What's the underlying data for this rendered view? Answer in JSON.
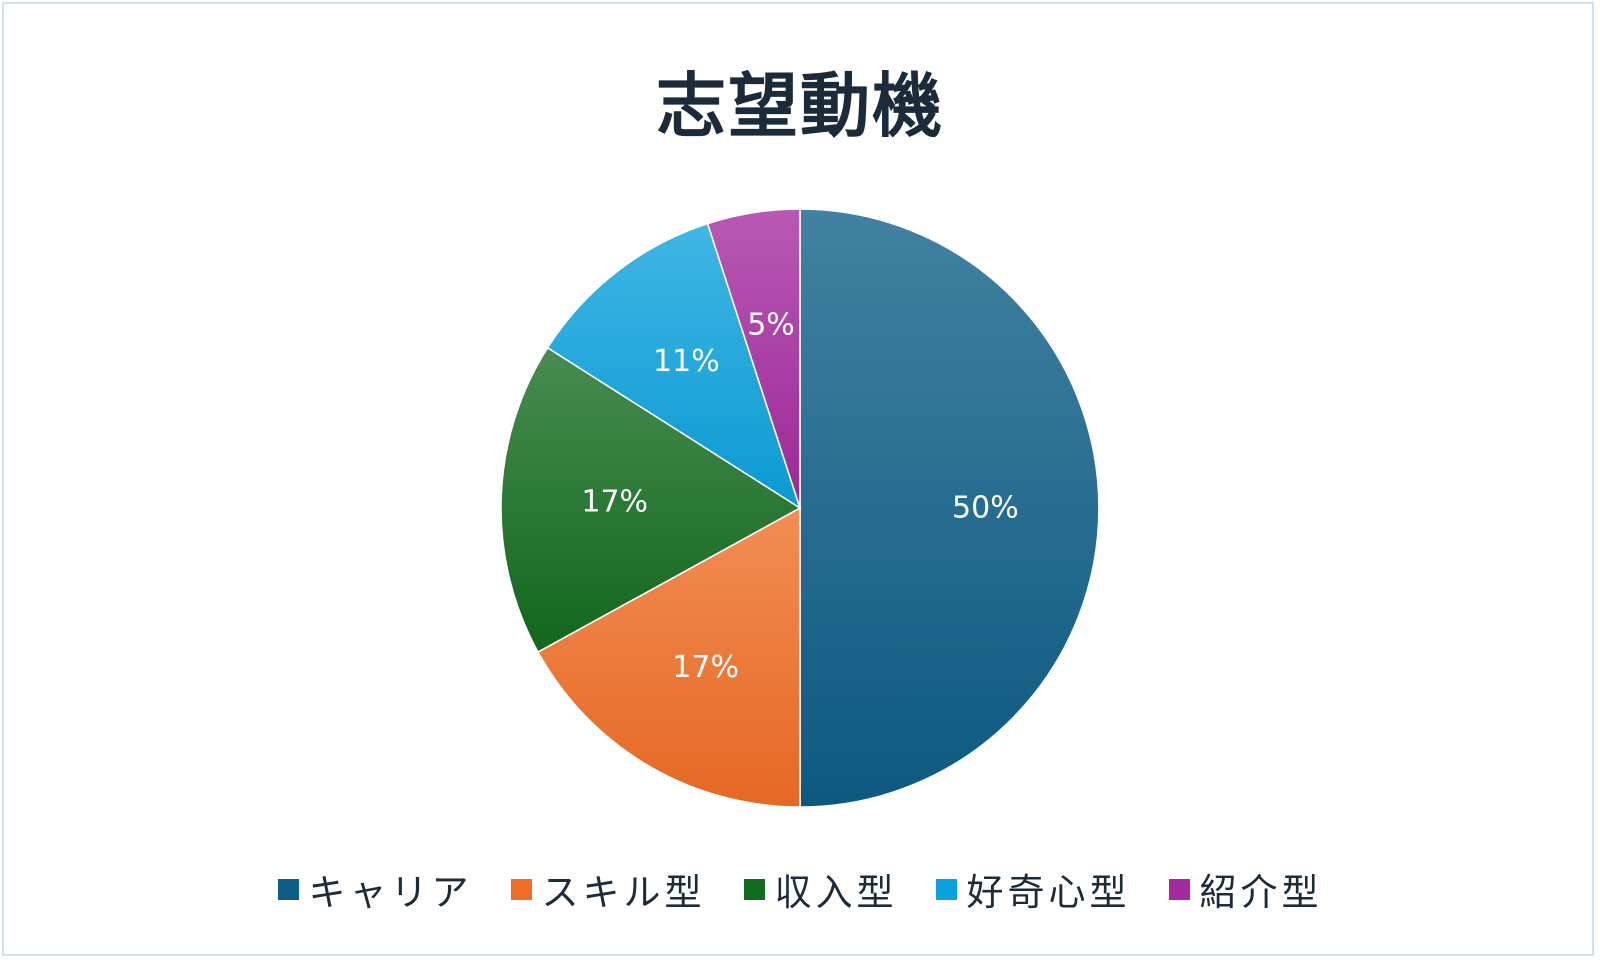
{
  "chart_data": {
    "type": "pie",
    "title": "志望動機",
    "categories": [
      "キャリア",
      "スキル型",
      "収入型",
      "好奇心型",
      "紹介型"
    ],
    "values": [
      50,
      17,
      17,
      11,
      5
    ],
    "data_labels": [
      "50%",
      "17%",
      "17%",
      "11%",
      "5%"
    ],
    "colors": [
      "#0d5e87",
      "#f06d25",
      "#136b1f",
      "#0aa2dd",
      "#a42a9f"
    ],
    "start_angle_deg": 0,
    "direction": "clockwise",
    "legend": "bottom"
  }
}
